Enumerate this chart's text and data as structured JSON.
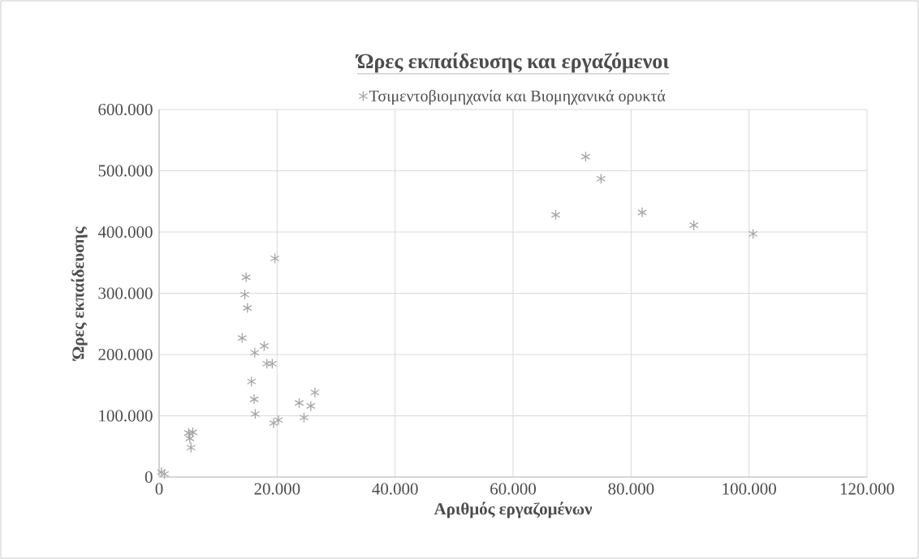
{
  "chart_data": {
    "type": "scatter",
    "title": "Ώρες εκπαίδευσης και εργαζόμενοι",
    "xlabel": "Αριθμός εργαζομένων",
    "ylabel": "Ώρες εκπαίδευσης",
    "series": [
      {
        "name": "Τσιμεντοβιομηχανία και Βιομηχανικά ορυκτά",
        "color": "#a5a5a5",
        "x": [
          400,
          900,
          5000,
          5700,
          5200,
          5400,
          15660,
          16120,
          16300,
          19400,
          20230,
          23740,
          26400,
          25710,
          24560,
          19630,
          14750,
          14520,
          14970,
          14070,
          17810,
          16210,
          18260,
          19180,
          67220,
          72300,
          74900,
          81880,
          90640,
          100680
        ],
        "values": [
          8000,
          5000,
          72000,
          73000,
          63000,
          48000,
          156000,
          127000,
          103000,
          88000,
          93000,
          121000,
          138000,
          116000,
          97000,
          357000,
          326000,
          298000,
          276000,
          227000,
          214000,
          203000,
          185000,
          185000,
          428000,
          523000,
          487000,
          432000,
          411000,
          397000
        ]
      }
    ],
    "xlim": [
      0,
      120000
    ],
    "ylim": [
      0,
      600000
    ],
    "xticks": [
      0,
      {
        "value": 20000,
        "label": "20.000"
      },
      {
        "value": 40000,
        "label": "40.000"
      },
      {
        "value": 60000,
        "label": "60.000"
      },
      {
        "value": 80000,
        "label": "80.000"
      },
      {
        "value": 100000,
        "label": "100.000"
      },
      {
        "value": 120000,
        "label": "120.000"
      }
    ],
    "yticks": [
      0,
      {
        "value": 100000,
        "label": "100.000"
      },
      {
        "value": 200000,
        "label": "200.000"
      },
      {
        "value": 300000,
        "label": "300.000"
      },
      {
        "value": 400000,
        "label": "400.000"
      },
      {
        "value": 500000,
        "label": "500.000"
      },
      {
        "value": 600000,
        "label": "600.000"
      }
    ],
    "grid": true,
    "legend": "top",
    "marker": "cross"
  }
}
